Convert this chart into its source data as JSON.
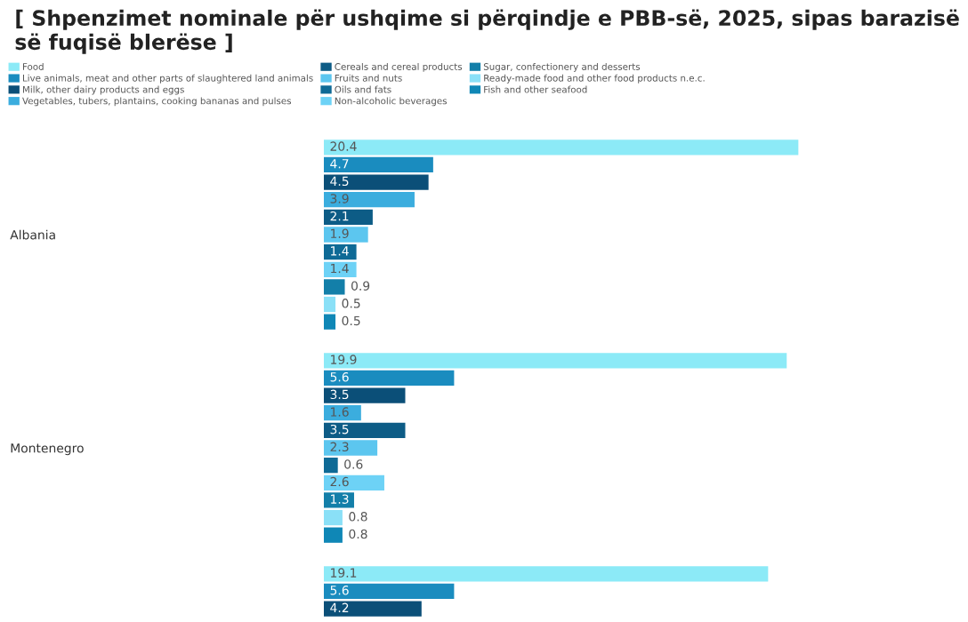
{
  "chart_data": {
    "type": "bar",
    "orientation": "horizontal",
    "title": "[ Shpenzimet nominale për ushqime si përqindje e PBB-së, 2025, sipas barazisë së fuqisë blerëse ]",
    "categories": [
      "Albania",
      "Montenegro",
      null
    ],
    "series": [
      {
        "name": "Food",
        "color": "#8ceaf7",
        "values": [
          20.4,
          19.9,
          19.1
        ]
      },
      {
        "name": "Live animals, meat and other parts of slaughtered land animals",
        "color": "#1a8cbf",
        "values": [
          4.7,
          5.6,
          5.6
        ]
      },
      {
        "name": "Milk, other dairy products and eggs",
        "color": "#0b4f78",
        "values": [
          4.5,
          3.5,
          4.2
        ]
      },
      {
        "name": "Vegetables, tubers, plantains, cooking bananas and pulses",
        "color": "#3badde",
        "values": [
          3.9,
          1.6,
          null
        ]
      },
      {
        "name": "Cereals and cereal products",
        "color": "#0d5c86",
        "values": [
          2.1,
          3.5,
          null
        ]
      },
      {
        "name": "Fruits and nuts",
        "color": "#5cc6ef",
        "values": [
          1.9,
          2.3,
          null
        ]
      },
      {
        "name": "Oils and fats",
        "color": "#0e6a96",
        "values": [
          1.4,
          0.6,
          null
        ]
      },
      {
        "name": "Non-alcoholic beverages",
        "color": "#6dd2f6",
        "values": [
          1.4,
          2.6,
          null
        ]
      },
      {
        "name": "Sugar, confectionery and desserts",
        "color": "#137fa9",
        "values": [
          0.9,
          1.3,
          null
        ]
      },
      {
        "name": "Ready-made food and other food products n.e.c.",
        "color": "#8ae0f7",
        "values": [
          0.5,
          0.8,
          null
        ]
      },
      {
        "name": "Fish and other seafood",
        "color": "#0f87b6",
        "values": [
          0.5,
          0.8,
          null
        ]
      }
    ],
    "data_labels": true,
    "legend": "top",
    "grid": false
  }
}
